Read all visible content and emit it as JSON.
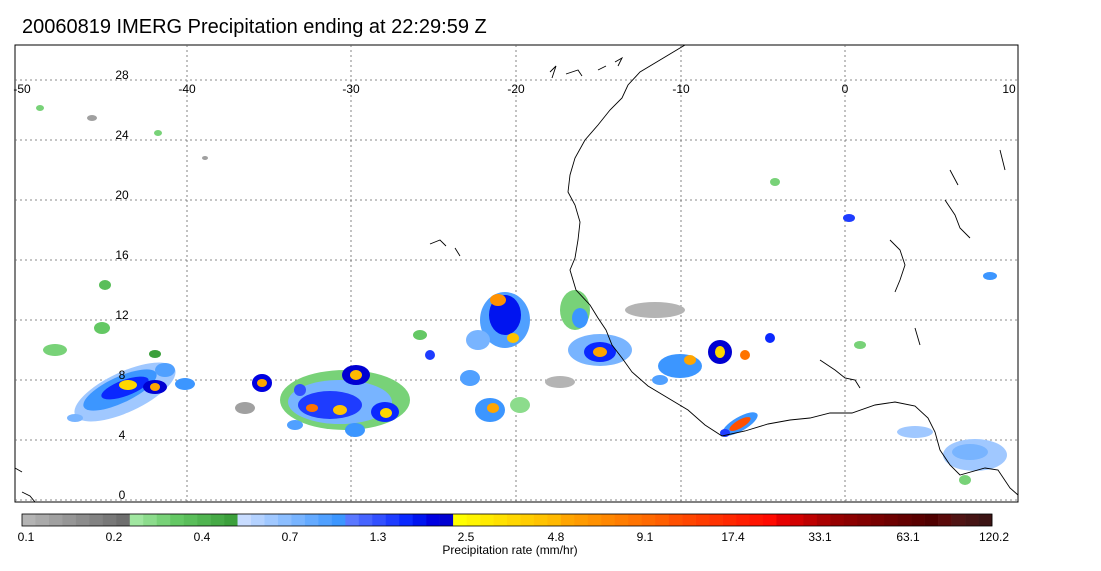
{
  "title": "20060819 IMERG Precipitation ending at 22:29:59 Z",
  "map": {
    "lon_range": [
      -50,
      10
    ],
    "lat_range": [
      -0.5,
      29
    ],
    "lon_ticks": [
      "-50",
      "-40",
      "-30",
      "-20",
      "-10",
      "0",
      "10"
    ],
    "lat_ticks": [
      "28",
      "24",
      "20",
      "16",
      "12",
      "8",
      "4",
      "0"
    ],
    "lon_values": [
      -50,
      -40,
      -30,
      -20,
      -10,
      0,
      10
    ],
    "lat_values": [
      28,
      24,
      20,
      16,
      12,
      8,
      4,
      0
    ]
  },
  "colorbar": {
    "title": "Precipitation rate (mm/hr)",
    "labels": [
      "0.1",
      "0.2",
      "0.4",
      "0.7",
      "1.3",
      "2.5",
      "4.8",
      "9.1",
      "17.4",
      "33.1",
      "63.1",
      "120.2"
    ],
    "colors": [
      "#b4b4b4",
      "#aaaaaa",
      "#a0a0a0",
      "#969696",
      "#8c8c8c",
      "#828282",
      "#787878",
      "#6e6e6e",
      "#a0e6a0",
      "#8cdc8c",
      "#78d278",
      "#64c864",
      "#5abe5a",
      "#50b450",
      "#46aa46",
      "#3ca03c",
      "#c8dcff",
      "#b4d2ff",
      "#a0c8ff",
      "#8cbeff",
      "#78b4ff",
      "#64aaff",
      "#50a0ff",
      "#3c96ff",
      "#5a78ff",
      "#4664ff",
      "#3250ff",
      "#1e3cff",
      "#0a28ff",
      "#0014f0",
      "#0000e1",
      "#0000d2",
      "#ffff00",
      "#fff500",
      "#ffeb00",
      "#ffe100",
      "#ffd700",
      "#ffcd00",
      "#ffc300",
      "#ffb900",
      "#ffa500",
      "#ff9b00",
      "#ff9100",
      "#ff8700",
      "#ff7d00",
      "#ff7300",
      "#ff6900",
      "#ff5f00",
      "#ff5000",
      "#ff4600",
      "#ff3c00",
      "#ff3200",
      "#ff2800",
      "#ff1e00",
      "#ff1400",
      "#ff0a00",
      "#e60000",
      "#d20000",
      "#be0000",
      "#aa0000",
      "#960000",
      "#8c0000",
      "#820000",
      "#780000",
      "#6e0000",
      "#640000",
      "#5a0000",
      "#500000",
      "#5a0a0a",
      "#501414",
      "#461414",
      "#3c1414"
    ]
  }
}
